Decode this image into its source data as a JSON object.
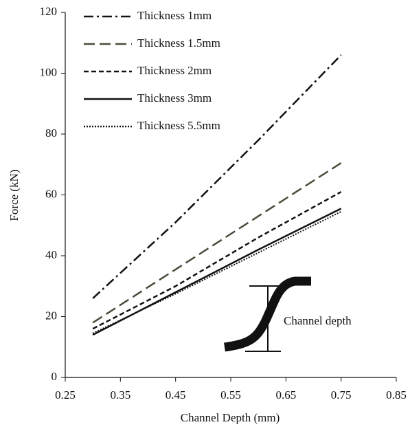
{
  "chart_data": {
    "type": "line",
    "x_label": "Channel Depth (mm)",
    "y_label": "Force (kN)",
    "x": [
      0.3,
      0.45,
      0.6,
      0.75
    ],
    "series": [
      {
        "name": "Thickness 1mm",
        "color": "#111111",
        "dash": "dashdot",
        "values": [
          26,
          51,
          78,
          106
        ]
      },
      {
        "name": "Thickness 1.5mm",
        "color": "#4d4a3b",
        "dash": "longdash",
        "values": [
          18,
          35.5,
          53,
          70.5
        ]
      },
      {
        "name": "Thickness 2mm",
        "color": "#111111",
        "dash": "dash",
        "values": [
          16,
          30,
          46,
          61
        ]
      },
      {
        "name": "Thickness 3mm",
        "color": "#111111",
        "dash": "solid",
        "values": [
          14,
          28,
          42,
          55.5
        ]
      },
      {
        "name": "Thickness 5.5mm",
        "color": "#111111",
        "dash": "dot",
        "values": [
          14.5,
          27.5,
          41,
          54.5
        ]
      }
    ],
    "xlim": [
      0.25,
      0.85
    ],
    "xticks": [
      0.25,
      0.35,
      0.45,
      0.55,
      0.65,
      0.75,
      0.85
    ],
    "ylim": [
      0,
      120
    ],
    "yticks": [
      0,
      20,
      40,
      60,
      80,
      100,
      120
    ],
    "legend": "upper-left",
    "annotation": "Channel depth"
  }
}
